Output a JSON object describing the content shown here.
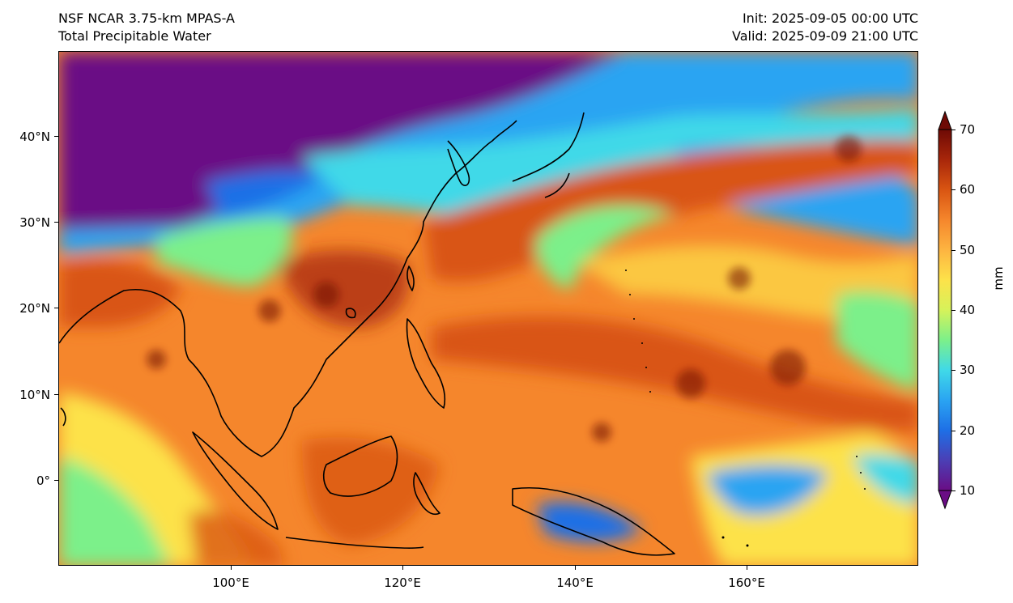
{
  "header": {
    "model": "NSF NCAR 3.75-km MPAS-A",
    "field": "Total Precipitable Water",
    "init": "Init: 2025-09-05 00:00 UTC",
    "valid": "Valid: 2025-09-09 21:00 UTC"
  },
  "map": {
    "lat_labels": [
      "40°N",
      "30°N",
      "20°N",
      "10°N",
      "0°"
    ],
    "lon_labels": [
      "100°E",
      "120°E",
      "140°E",
      "160°E"
    ],
    "extent": {
      "lon_min": 80,
      "lon_max": 180,
      "lat_min": -10,
      "lat_max": 50
    }
  },
  "colorbar": {
    "unit": "mm",
    "ticks": [
      "10",
      "20",
      "30",
      "40",
      "50",
      "60",
      "70"
    ],
    "min": 10,
    "max": 70,
    "colors": [
      "#6a0d85",
      "#4b3fb5",
      "#1e6fe6",
      "#2aa4f2",
      "#40d9e8",
      "#7cf08a",
      "#d6f25a",
      "#fde24a",
      "#fdb441",
      "#f5862c",
      "#d95512",
      "#a8260a",
      "#6e0a05"
    ]
  }
}
